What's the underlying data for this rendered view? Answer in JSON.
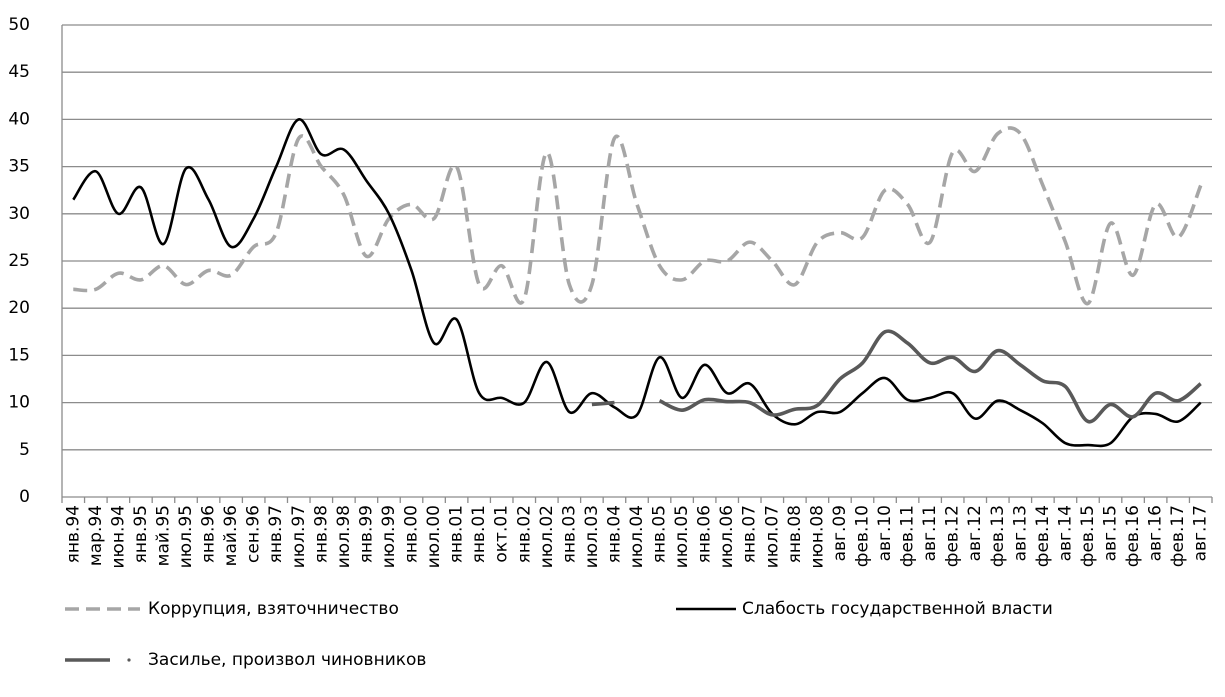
{
  "chart_data": {
    "type": "line",
    "categories": [
      "янв.94",
      "мар.94",
      "июн.94",
      "янв.95",
      "май.95",
      "июл.95",
      "янв.96",
      "май.96",
      "сен.96",
      "янв.97",
      "июл.97",
      "янв.98",
      "июл.98",
      "янв.99",
      "июл.99",
      "янв.00",
      "июл.00",
      "янв.01",
      "янв.01",
      "окт.01",
      "янв.02",
      "июл.02",
      "янв.03",
      "июл.03",
      "янв.04",
      "июл.04",
      "янв.05",
      "июл.05",
      "янв.06",
      "июл.06",
      "янв.07",
      "июл.07",
      "янв.08",
      "июн.08",
      "авг.09",
      "фев.10",
      "авг.10",
      "фев.11",
      "авг.11",
      "фев.12",
      "авг.12",
      "фев.13",
      "авг.13",
      "фев.14",
      "авг.14",
      "фев.15",
      "авг.15",
      "фев.16",
      "авг.16",
      "фев.17",
      "авг.17"
    ],
    "series": [
      {
        "name": "Коррупция, взяточничество",
        "color": "#a6a6a6",
        "style": "dashed",
        "values": [
          22,
          22,
          23.7,
          23,
          24.5,
          22.5,
          24,
          23.5,
          26.5,
          28,
          38,
          35,
          32,
          25.5,
          29.5,
          31,
          29.5,
          35,
          22.5,
          24.5,
          21,
          36.5,
          22.5,
          22.5,
          38,
          31,
          24.5,
          23,
          25,
          25,
          27,
          25,
          22.5,
          27,
          28,
          27.5,
          32.5,
          31,
          27,
          36.5,
          34.5,
          38.5,
          38.5,
          33,
          27,
          20.5,
          29,
          23.5,
          31,
          27.5,
          33
        ]
      },
      {
        "name": "Слабость государственной власти",
        "color": "#000000",
        "style": "solid",
        "values": [
          31.5,
          34.5,
          30,
          32.8,
          26.8,
          34.8,
          31.5,
          26.5,
          29.5,
          35,
          40,
          36.3,
          36.8,
          33.5,
          30,
          24,
          16.3,
          18.8,
          11,
          10.5,
          10,
          14.3,
          9,
          11,
          9.5,
          8.7,
          14.8,
          10.5,
          14,
          11,
          12,
          8.8,
          7.7,
          9,
          9,
          11,
          12.6,
          10.3,
          10.5,
          11,
          8.3,
          10.2,
          9.2,
          7.8,
          5.7,
          5.5,
          5.7,
          8.5,
          8.8,
          8,
          10
        ]
      },
      {
        "name": "Засилье, произвол чиновников",
        "color": "#595959",
        "style": "dashdot",
        "values": [
          null,
          null,
          null,
          null,
          null,
          null,
          null,
          null,
          null,
          null,
          null,
          null,
          null,
          null,
          null,
          null,
          null,
          null,
          null,
          null,
          null,
          null,
          null,
          9.8,
          10,
          null,
          10.2,
          9.2,
          10.3,
          10.1,
          10,
          8.7,
          9.3,
          9.7,
          12.5,
          14.2,
          17.5,
          16.3,
          14.2,
          14.8,
          13.3,
          15.5,
          14,
          12.3,
          11.7,
          8,
          9.8,
          8.5,
          11,
          10.2,
          12
        ]
      }
    ],
    "ylim": [
      0,
      50
    ],
    "yticks": [
      0,
      5,
      10,
      15,
      20,
      25,
      30,
      35,
      40,
      45,
      50
    ],
    "grid": true
  }
}
